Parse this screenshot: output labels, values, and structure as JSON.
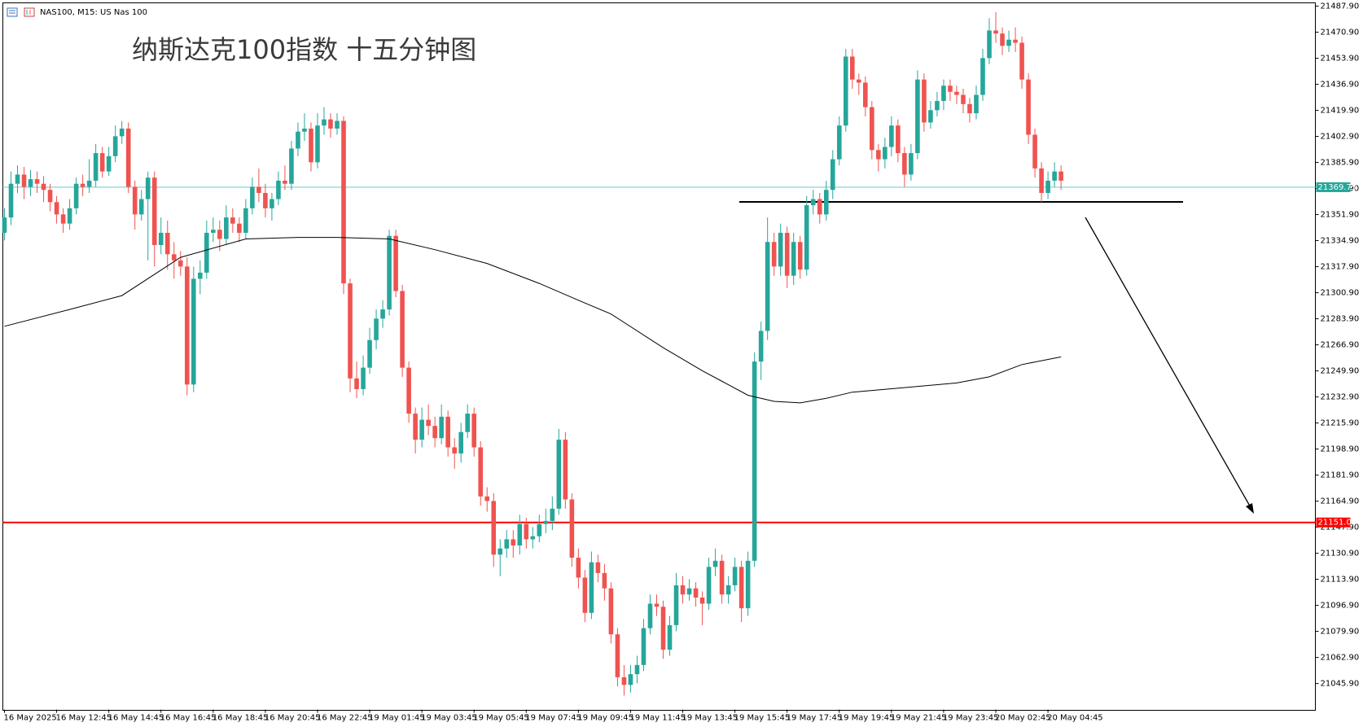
{
  "chart_data": {
    "type": "candlestick",
    "symbol_label": "NAS100, M15: US Nas 100",
    "title": "纳斯达克100指数 十五分钟图",
    "up_color": "#26a69a",
    "down_color": "#ef5350",
    "grid": false,
    "ylim": [
      21028.9,
      21490.2
    ],
    "yticks": [
      {
        "value": 21487.9,
        "label": "21487.90"
      },
      {
        "value": 21470.9,
        "label": "21470.90"
      },
      {
        "value": 21453.9,
        "label": "21453.90"
      },
      {
        "value": 21436.9,
        "label": "21436.90"
      },
      {
        "value": 21419.9,
        "label": "21419.90"
      },
      {
        "value": 21402.9,
        "label": "21402.90"
      },
      {
        "value": 21385.9,
        "label": "21385.90"
      },
      {
        "value": 21368.9,
        "label": "21368.90"
      },
      {
        "value": 21351.9,
        "label": "21351.90"
      },
      {
        "value": 21334.9,
        "label": "21334.90"
      },
      {
        "value": 21317.9,
        "label": "21317.90"
      },
      {
        "value": 21300.9,
        "label": "21300.90"
      },
      {
        "value": 21283.9,
        "label": "21283.90"
      },
      {
        "value": 21266.9,
        "label": "21266.90"
      },
      {
        "value": 21249.9,
        "label": "21249.90"
      },
      {
        "value": 21232.9,
        "label": "21232.90"
      },
      {
        "value": 21215.9,
        "label": "21215.90"
      },
      {
        "value": 21198.9,
        "label": "21198.90"
      },
      {
        "value": 21181.9,
        "label": "21181.90"
      },
      {
        "value": 21164.9,
        "label": "21164.90"
      },
      {
        "value": 21147.9,
        "label": "21147.90"
      },
      {
        "value": 21130.9,
        "label": "21130.90"
      },
      {
        "value": 21113.9,
        "label": "21113.90"
      },
      {
        "value": 21096.9,
        "label": "21096.90"
      },
      {
        "value": 21079.9,
        "label": "21079.90"
      },
      {
        "value": 21062.9,
        "label": "21062.90"
      },
      {
        "value": 21045.9,
        "label": "21045.90"
      }
    ],
    "categories": [
      "16 May 2025",
      null,
      null,
      null,
      null,
      null,
      null,
      null,
      "16 May 12:45",
      null,
      null,
      null,
      null,
      null,
      null,
      null,
      "16 May 14:45",
      null,
      null,
      null,
      null,
      null,
      null,
      null,
      "16 May 16:45",
      null,
      null,
      null,
      null,
      null,
      null,
      null,
      "16 May 18:45",
      null,
      null,
      null,
      null,
      null,
      null,
      null,
      "16 May 20:45",
      null,
      null,
      null,
      null,
      null,
      null,
      null,
      "16 May 22:45",
      null,
      null,
      null,
      null,
      null,
      null,
      null,
      "19 May 01:45",
      null,
      null,
      null,
      null,
      null,
      null,
      null,
      "19 May 03:45",
      null,
      null,
      null,
      null,
      null,
      null,
      null,
      "19 May 05:45",
      null,
      null,
      null,
      null,
      null,
      null,
      null,
      "19 May 07:45",
      null,
      null,
      null,
      null,
      null,
      null,
      null,
      "19 May 09:45",
      null,
      null,
      null,
      null,
      null,
      null,
      null,
      "19 May 11:45",
      null,
      null,
      null,
      null,
      null,
      null,
      null,
      "19 May 13:45",
      null,
      null,
      null,
      null,
      null,
      null,
      null,
      "19 May 15:45",
      null,
      null,
      null,
      null,
      null,
      null,
      null,
      "19 May 17:45",
      null,
      null,
      null,
      null,
      null,
      null,
      null,
      "19 May 19:45",
      null,
      null,
      null,
      null,
      null,
      null,
      null,
      "19 May 21:45",
      null,
      null,
      null,
      null,
      null,
      null,
      null,
      "19 May 23:45",
      null,
      null,
      null,
      null,
      null,
      null,
      null,
      "20 May 02:45",
      null,
      null,
      null,
      null,
      null,
      null,
      null,
      "20 May 04:45",
      null,
      null
    ],
    "candles": [
      [
        21340,
        21356,
        21335,
        21350
      ],
      [
        21350,
        21380,
        21345,
        21372
      ],
      [
        21372,
        21384,
        21366,
        21378
      ],
      [
        21378,
        21383,
        21362,
        21370
      ],
      [
        21370,
        21381,
        21364,
        21375
      ],
      [
        21375,
        21380,
        21366,
        21372
      ],
      [
        21372,
        21377,
        21360,
        21368
      ],
      [
        21368,
        21372,
        21354,
        21360
      ],
      [
        21360,
        21364,
        21346,
        21352
      ],
      [
        21352,
        21356,
        21340,
        21346
      ],
      [
        21346,
        21362,
        21342,
        21356
      ],
      [
        21356,
        21376,
        21352,
        21372
      ],
      [
        21372,
        21378,
        21364,
        21370
      ],
      [
        21370,
        21388,
        21366,
        21374
      ],
      [
        21374,
        21398,
        21370,
        21392
      ],
      [
        21392,
        21396,
        21376,
        21380
      ],
      [
        21380,
        21396,
        21377,
        21390
      ],
      [
        21390,
        21410,
        21386,
        21403
      ],
      [
        21403,
        21413,
        21398,
        21408
      ],
      [
        21408,
        21412,
        21366,
        21370
      ],
      [
        21370,
        21374,
        21342,
        21352
      ],
      [
        21352,
        21368,
        21348,
        21362
      ],
      [
        21362,
        21380,
        21322,
        21376
      ],
      [
        21376,
        21380,
        21318,
        21332
      ],
      [
        21332,
        21350,
        21326,
        21340
      ],
      [
        21340,
        21348,
        21316,
        21326
      ],
      [
        21326,
        21334,
        21310,
        21322
      ],
      [
        21322,
        21328,
        21312,
        21318
      ],
      [
        21318,
        21324,
        21234,
        21241
      ],
      [
        21241,
        21318,
        21236,
        21310
      ],
      [
        21310,
        21322,
        21300,
        21314
      ],
      [
        21314,
        21348,
        21310,
        21340
      ],
      [
        21340,
        21350,
        21334,
        21342
      ],
      [
        21342,
        21348,
        21328,
        21336
      ],
      [
        21336,
        21358,
        21332,
        21350
      ],
      [
        21350,
        21356,
        21340,
        21346
      ],
      [
        21346,
        21350,
        21334,
        21340
      ],
      [
        21340,
        21362,
        21336,
        21356
      ],
      [
        21356,
        21376,
        21352,
        21370
      ],
      [
        21370,
        21382,
        21360,
        21366
      ],
      [
        21366,
        21372,
        21350,
        21356
      ],
      [
        21356,
        21366,
        21348,
        21362
      ],
      [
        21362,
        21380,
        21358,
        21374
      ],
      [
        21374,
        21384,
        21368,
        21372
      ],
      [
        21372,
        21400,
        21368,
        21395
      ],
      [
        21395,
        21412,
        21390,
        21406
      ],
      [
        21406,
        21418,
        21400,
        21408
      ],
      [
        21408,
        21412,
        21380,
        21386
      ],
      [
        21386,
        21418,
        21382,
        21410
      ],
      [
        21410,
        21422,
        21404,
        21414
      ],
      [
        21414,
        21418,
        21402,
        21408
      ],
      [
        21408,
        21418,
        21404,
        21413
      ],
      [
        21413,
        21416,
        21300,
        21307
      ],
      [
        21307,
        21310,
        21236,
        21245
      ],
      [
        21245,
        21256,
        21232,
        21238
      ],
      [
        21238,
        21260,
        21234,
        21252
      ],
      [
        21252,
        21278,
        21248,
        21270
      ],
      [
        21270,
        21290,
        21264,
        21284
      ],
      [
        21284,
        21296,
        21278,
        21290
      ],
      [
        21290,
        21342,
        21286,
        21338
      ],
      [
        21338,
        21342,
        21298,
        21302
      ],
      [
        21302,
        21306,
        21246,
        21252
      ],
      [
        21252,
        21256,
        21216,
        21222
      ],
      [
        21222,
        21226,
        21196,
        21205
      ],
      [
        21205,
        21226,
        21200,
        21218
      ],
      [
        21218,
        21228,
        21208,
        21214
      ],
      [
        21214,
        21220,
        21200,
        21206
      ],
      [
        21206,
        21228,
        21202,
        21220
      ],
      [
        21220,
        21224,
        21194,
        21200
      ],
      [
        21200,
        21206,
        21186,
        21196
      ],
      [
        21196,
        21216,
        21190,
        21210
      ],
      [
        21210,
        21228,
        21206,
        21222
      ],
      [
        21222,
        21226,
        21194,
        21200
      ],
      [
        21200,
        21204,
        21162,
        21168
      ],
      [
        21168,
        21174,
        21158,
        21165
      ],
      [
        21165,
        21170,
        21122,
        21130
      ],
      [
        21130,
        21140,
        21116,
        21134
      ],
      [
        21134,
        21146,
        21128,
        21140
      ],
      [
        21140,
        21146,
        21128,
        21136
      ],
      [
        21136,
        21156,
        21130,
        21150
      ],
      [
        21150,
        21154,
        21134,
        21140
      ],
      [
        21140,
        21148,
        21134,
        21142
      ],
      [
        21142,
        21156,
        21138,
        21150
      ],
      [
        21150,
        21160,
        21144,
        21152
      ],
      [
        21152,
        21168,
        21146,
        21160
      ],
      [
        21160,
        21212,
        21156,
        21205
      ],
      [
        21205,
        21210,
        21160,
        21166
      ],
      [
        21166,
        21170,
        21122,
        21128
      ],
      [
        21128,
        21134,
        21108,
        21115
      ],
      [
        21115,
        21120,
        21086,
        21092
      ],
      [
        21092,
        21132,
        21088,
        21125
      ],
      [
        21125,
        21130,
        21112,
        21118
      ],
      [
        21118,
        21124,
        21100,
        21108
      ],
      [
        21108,
        21112,
        21072,
        21078
      ],
      [
        21078,
        21082,
        21044,
        21050
      ],
      [
        21050,
        21058,
        21038,
        21045
      ],
      [
        21045,
        21058,
        21040,
        21052
      ],
      [
        21052,
        21064,
        21046,
        21058
      ],
      [
        21058,
        21088,
        21054,
        21082
      ],
      [
        21082,
        21104,
        21078,
        21098
      ],
      [
        21098,
        21104,
        21090,
        21096
      ],
      [
        21096,
        21100,
        21062,
        21068
      ],
      [
        21068,
        21090,
        21064,
        21084
      ],
      [
        21084,
        21118,
        21080,
        21110
      ],
      [
        21110,
        21116,
        21098,
        21104
      ],
      [
        21104,
        21114,
        21100,
        21108
      ],
      [
        21108,
        21112,
        21096,
        21102
      ],
      [
        21102,
        21106,
        21084,
        21098
      ],
      [
        21098,
        21128,
        21094,
        21122
      ],
      [
        21122,
        21134,
        21116,
        21126
      ],
      [
        21126,
        21130,
        21098,
        21104
      ],
      [
        21104,
        21116,
        21098,
        21110
      ],
      [
        21110,
        21128,
        21106,
        21122
      ],
      [
        21122,
        21126,
        21086,
        21095
      ],
      [
        21095,
        21132,
        21090,
        21126
      ],
      [
        21126,
        21262,
        21122,
        21256
      ],
      [
        21256,
        21282,
        21244,
        21276
      ],
      [
        21276,
        21350,
        21270,
        21334
      ],
      [
        21334,
        21340,
        21312,
        21318
      ],
      [
        21318,
        21346,
        21312,
        21340
      ],
      [
        21340,
        21344,
        21304,
        21312
      ],
      [
        21312,
        21340,
        21306,
        21334
      ],
      [
        21334,
        21338,
        21310,
        21316
      ],
      [
        21316,
        21364,
        21312,
        21358
      ],
      [
        21358,
        21368,
        21352,
        21362
      ],
      [
        21362,
        21366,
        21346,
        21352
      ],
      [
        21352,
        21374,
        21348,
        21368
      ],
      [
        21368,
        21394,
        21362,
        21388
      ],
      [
        21388,
        21416,
        21384,
        21410
      ],
      [
        21410,
        21460,
        21406,
        21455
      ],
      [
        21455,
        21460,
        21434,
        21440
      ],
      [
        21440,
        21444,
        21430,
        21438
      ],
      [
        21438,
        21442,
        21416,
        21422
      ],
      [
        21422,
        21426,
        21388,
        21394
      ],
      [
        21394,
        21398,
        21380,
        21388
      ],
      [
        21388,
        21402,
        21382,
        21396
      ],
      [
        21396,
        21416,
        21390,
        21410
      ],
      [
        21410,
        21414,
        21386,
        21392
      ],
      [
        21392,
        21396,
        21370,
        21378
      ],
      [
        21378,
        21398,
        21374,
        21392
      ],
      [
        21392,
        21446,
        21388,
        21440
      ],
      [
        21440,
        21444,
        21406,
        21412
      ],
      [
        21412,
        21426,
        21408,
        21420
      ],
      [
        21420,
        21432,
        21416,
        21426
      ],
      [
        21426,
        21440,
        21420,
        21436
      ],
      [
        21436,
        21440,
        21426,
        21432
      ],
      [
        21432,
        21436,
        21424,
        21430
      ],
      [
        21430,
        21434,
        21418,
        21424
      ],
      [
        21424,
        21428,
        21412,
        21418
      ],
      [
        21418,
        21436,
        21414,
        21430
      ],
      [
        21430,
        21460,
        21426,
        21454
      ],
      [
        21454,
        21480,
        21450,
        21472
      ],
      [
        21472,
        21484,
        21464,
        21470
      ],
      [
        21470,
        21474,
        21456,
        21462
      ],
      [
        21462,
        21472,
        21458,
        21466
      ],
      [
        21466,
        21474,
        21458,
        21464
      ],
      [
        21464,
        21468,
        21434,
        21440
      ],
      [
        21440,
        21444,
        21398,
        21404
      ],
      [
        21404,
        21408,
        21376,
        21382
      ],
      [
        21382,
        21386,
        21360,
        21366
      ],
      [
        21366,
        21380,
        21362,
        21374
      ],
      [
        21374,
        21386,
        21370,
        21380
      ],
      [
        21380,
        21384,
        21368,
        21374
      ]
    ],
    "ma": {
      "color": "#000000",
      "x": [
        0,
        10,
        18,
        27,
        37,
        45,
        51,
        59,
        66,
        74,
        82,
        88,
        93,
        101,
        107,
        114,
        118,
        122,
        126,
        130,
        138,
        146,
        151,
        156,
        162
      ],
      "values": [
        21279,
        21290,
        21299,
        21324,
        21336,
        21337,
        21337,
        21336,
        21329,
        21320,
        21307,
        21296,
        21287,
        21265,
        21250,
        21234,
        21230,
        21229,
        21232,
        21236,
        21239,
        21242,
        21246,
        21254,
        21259
      ]
    },
    "price_lines": [
      {
        "value": 21369.75,
        "color": "#7fcfcf",
        "label_bg": "#26a69a"
      },
      {
        "value": 21151,
        "label": "21151.00",
        "color": "#ff0000",
        "label_bg": "#ff0000"
      }
    ]
  }
}
